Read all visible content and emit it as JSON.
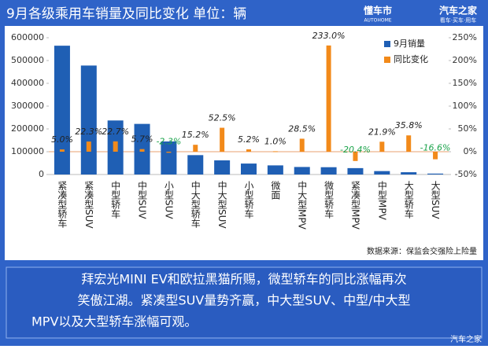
{
  "header": {
    "title": "9月各级乘用车销量及同比变化  单位：辆",
    "logo_left": "懂车市",
    "logo_left_sub": "AUTOHOME",
    "logo_right": "汽车之家",
    "logo_right_sub": "看车·买车·用车"
  },
  "chart_data": {
    "type": "bar-line",
    "categories": [
      "紧凑型轿车",
      "紧凑型SUV",
      "中型轿车",
      "中型SUV",
      "小型SUV",
      "中大型轿车",
      "中大型SUV",
      "小型轿车",
      "微面",
      "中大型MPV",
      "微型轿车",
      "紧凑型MPV",
      "中型MPV",
      "大型轿车",
      "大型SUV"
    ],
    "series": [
      {
        "name": "9月销量",
        "color": "#1f5fb4",
        "values": [
          565000,
          478000,
          237000,
          222000,
          145000,
          85000,
          62000,
          48000,
          40000,
          33000,
          32000,
          28000,
          15000,
          10000,
          4000
        ]
      },
      {
        "name": "同比变化",
        "color": "#f28a1a",
        "axis": "y2",
        "values": [
          5.0,
          22.3,
          22.7,
          5.7,
          -2.3,
          15.2,
          52.5,
          5.2,
          1.0,
          28.5,
          233.0,
          -20.4,
          21.9,
          35.8,
          -16.6
        ],
        "value_labels": [
          "5.0%",
          "22.3%",
          "22.7%",
          "5.7%",
          "-2.3%",
          "15.2%",
          "52.5%",
          "5.2%",
          "1.0%",
          "28.5%",
          "233.0%",
          "-20.4%",
          "21.9%",
          "35.8%",
          "-16.6%"
        ]
      }
    ],
    "ylim": [
      0,
      600000
    ],
    "yticks": [
      0,
      100000,
      200000,
      300000,
      400000,
      500000,
      600000
    ],
    "y2lim": [
      -50,
      250
    ],
    "y2ticks": [
      {
        "value": -50,
        "label": "-50%"
      },
      {
        "value": 0,
        "label": "0%"
      },
      {
        "value": 50,
        "label": "50%"
      },
      {
        "value": 100,
        "label": "100%"
      },
      {
        "value": 150,
        "label": "150%"
      },
      {
        "value": 200,
        "label": "200%"
      },
      {
        "value": 250,
        "label": "250%"
      }
    ],
    "source": "数据来源：保监会交强险上险量",
    "legend": "upper right"
  },
  "caption": [
    "拜宏光MINI EV和欧拉黑猫所赐，微型轿车的同比涨幅再次",
    "笑傲江湖。紧凑型SUV量势齐赢，中大型SUV、中型/中大型",
    "MPV以及大型轿车涨幅可观。"
  ],
  "watermark": "汽车之家"
}
